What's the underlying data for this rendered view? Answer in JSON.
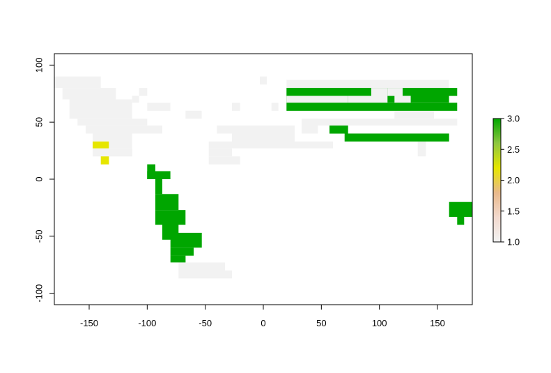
{
  "chart_data": {
    "type": "heatmap",
    "title": "",
    "xlabel": "",
    "ylabel": "",
    "xlim": [
      -180,
      180
    ],
    "ylim": [
      -110,
      110
    ],
    "xticks": [
      -150,
      -100,
      -50,
      0,
      50,
      100,
      150
    ],
    "yticks": [
      100,
      50,
      0,
      -50,
      -100
    ],
    "legend": {
      "position": "right",
      "min": 1.0,
      "max": 3.0,
      "ticks": [
        "3.0",
        "2.5",
        "2.0",
        "1.5",
        "1.0"
      ],
      "tick_values": [
        3.0,
        2.5,
        2.0,
        1.5,
        1.0
      ],
      "colors": [
        "#F2F2F2",
        "#F2D9CE",
        "#E9B98B",
        "#E6E600",
        "#8EC63F",
        "#00A600"
      ]
    },
    "value_colors": {
      "1": "#F2F2F2",
      "2": "#E6E600",
      "3": "#00A600"
    },
    "cell_size_deg": [
      6.67,
      6.67
    ],
    "cells": [
      {
        "value": 1,
        "x": [
          -180,
          -140
        ],
        "y": [
          80,
          90
        ]
      },
      {
        "value": 1,
        "x": [
          -173,
          -127
        ],
        "y": [
          70,
          80
        ]
      },
      {
        "value": 1,
        "x": [
          -167,
          -113
        ],
        "y": [
          60,
          70
        ]
      },
      {
        "value": 1,
        "x": [
          -167,
          -113
        ],
        "y": [
          53,
          60
        ]
      },
      {
        "value": 1,
        "x": [
          -160,
          -100
        ],
        "y": [
          47,
          53
        ]
      },
      {
        "value": 1,
        "x": [
          -153,
          -87
        ],
        "y": [
          40,
          47
        ]
      },
      {
        "value": 1,
        "x": [
          -147,
          -113
        ],
        "y": [
          27,
          40
        ]
      },
      {
        "value": 1,
        "x": [
          -147,
          -113
        ],
        "y": [
          20,
          27
        ]
      },
      {
        "value": 1,
        "x": [
          -107,
          -100
        ],
        "y": [
          73,
          80
        ]
      },
      {
        "value": 1,
        "x": [
          -113,
          -107
        ],
        "y": [
          67,
          73
        ]
      },
      {
        "value": 1,
        "x": [
          -100,
          -80
        ],
        "y": [
          60,
          67
        ]
      },
      {
        "value": 1,
        "x": [
          -67,
          -53
        ],
        "y": [
          53,
          60
        ]
      },
      {
        "value": 1,
        "x": [
          -27,
          -20
        ],
        "y": [
          60,
          67
        ]
      },
      {
        "value": 1,
        "x": [
          -147,
          -113
        ],
        "y": [
          20,
          27
        ]
      },
      {
        "value": 1,
        "x": [
          -40,
          27
        ],
        "y": [
          40,
          47
        ]
      },
      {
        "value": 1,
        "x": [
          -27,
          27
        ],
        "y": [
          33,
          40
        ]
      },
      {
        "value": 1,
        "x": [
          -47,
          60
        ],
        "y": [
          27,
          33
        ]
      },
      {
        "value": 1,
        "x": [
          -47,
          -27
        ],
        "y": [
          20,
          27
        ]
      },
      {
        "value": 1,
        "x": [
          -47,
          -20
        ],
        "y": [
          13,
          20
        ]
      },
      {
        "value": 1,
        "x": [
          7,
          13
        ],
        "y": [
          60,
          67
        ]
      },
      {
        "value": 1,
        "x": [
          33,
          47
        ],
        "y": [
          40,
          53
        ]
      },
      {
        "value": 1,
        "x": [
          40,
          167
        ],
        "y": [
          47,
          53
        ]
      },
      {
        "value": 1,
        "x": [
          113,
          147
        ],
        "y": [
          53,
          60
        ]
      },
      {
        "value": 1,
        "x": [
          20,
          160
        ],
        "y": [
          67,
          87
        ]
      },
      {
        "value": 1,
        "x": [
          -3,
          3
        ],
        "y": [
          83,
          90
        ]
      },
      {
        "value": 1,
        "x": [
          -73,
          -33
        ],
        "y": [
          -80,
          -73
        ]
      },
      {
        "value": 1,
        "x": [
          -73,
          -27
        ],
        "y": [
          -87,
          -80
        ]
      },
      {
        "value": 1,
        "x": [
          133,
          140
        ],
        "y": [
          20,
          33
        ]
      },
      {
        "value": 2,
        "x": [
          -147,
          -133
        ],
        "y": [
          27,
          33
        ]
      },
      {
        "value": 2,
        "x": [
          -140,
          -133
        ],
        "y": [
          13,
          20
        ]
      },
      {
        "value": 3,
        "x": [
          20,
          167
        ],
        "y": [
          73,
          80
        ]
      },
      {
        "value": 3,
        "x": [
          20,
          160
        ],
        "y": [
          67,
          73
        ]
      },
      {
        "value": 3,
        "x": [
          20,
          167
        ],
        "y": [
          60,
          67
        ]
      },
      {
        "value": 3,
        "x": [
          57,
          73
        ],
        "y": [
          40,
          47
        ]
      },
      {
        "value": 3,
        "x": [
          70,
          160
        ],
        "y": [
          33,
          40
        ]
      },
      {
        "value": 3,
        "x": [
          -100,
          -93
        ],
        "y": [
          0,
          13
        ]
      },
      {
        "value": 3,
        "x": [
          -100,
          -80
        ],
        "y": [
          0,
          7
        ]
      },
      {
        "value": 3,
        "x": [
          -93,
          -87
        ],
        "y": [
          -13,
          0
        ]
      },
      {
        "value": 3,
        "x": [
          -93,
          -73
        ],
        "y": [
          -27,
          -13
        ]
      },
      {
        "value": 3,
        "x": [
          -93,
          -67
        ],
        "y": [
          -40,
          -27
        ]
      },
      {
        "value": 3,
        "x": [
          -87,
          -73
        ],
        "y": [
          -53,
          -40
        ]
      },
      {
        "value": 3,
        "x": [
          -80,
          -53
        ],
        "y": [
          -60,
          -47
        ]
      },
      {
        "value": 3,
        "x": [
          -80,
          -60
        ],
        "y": [
          -67,
          -60
        ]
      },
      {
        "value": 3,
        "x": [
          -80,
          -67
        ],
        "y": [
          -73,
          -67
        ]
      },
      {
        "value": 3,
        "x": [
          160,
          180
        ],
        "y": [
          -33,
          -20
        ]
      },
      {
        "value": 3,
        "x": [
          167,
          173
        ],
        "y": [
          -40,
          -33
        ]
      }
    ],
    "holes": [
      {
        "x": [
          73,
          93
        ],
        "y": [
          67,
          73
        ]
      },
      {
        "x": [
          93,
          107
        ],
        "y": [
          67,
          73
        ]
      },
      {
        "x": [
          113,
          127
        ],
        "y": [
          67,
          73
        ]
      },
      {
        "x": [
          107,
          120
        ],
        "y": [
          73,
          80
        ]
      },
      {
        "x": [
          93,
          107
        ],
        "y": [
          73,
          80
        ]
      },
      {
        "x": [
          20,
          73
        ],
        "y": [
          67,
          73
        ]
      }
    ]
  }
}
